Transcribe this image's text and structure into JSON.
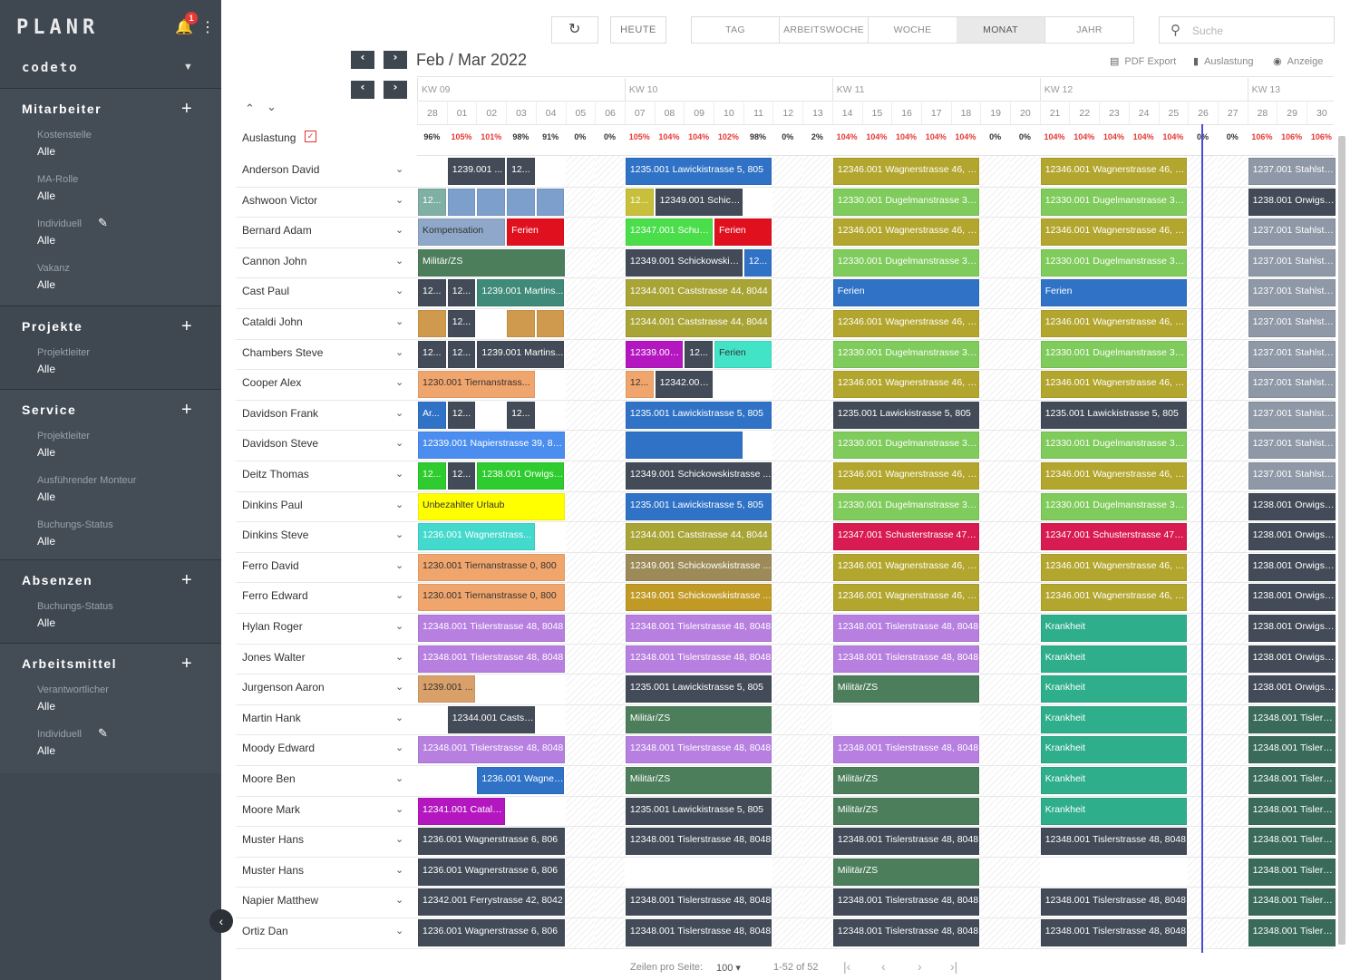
{
  "app": {
    "logo": "PLANR",
    "notifications": "1",
    "company": "codeto"
  },
  "sidebar": [
    {
      "title": "Mitarbeiter",
      "filters": [
        {
          "label": "Kostenstelle",
          "value": "Alle"
        },
        {
          "label": "MA-Rolle",
          "value": "Alle"
        },
        {
          "label": "Individuell",
          "value": "Alle",
          "editable": true
        },
        {
          "label": "Vakanz",
          "value": "Alle"
        }
      ]
    },
    {
      "title": "Projekte",
      "filters": [
        {
          "label": "Projektleiter",
          "value": "Alle"
        }
      ]
    },
    {
      "title": "Service",
      "filters": [
        {
          "label": "Projektleiter",
          "value": "Alle"
        },
        {
          "label": "Ausführender Monteur",
          "value": "Alle"
        },
        {
          "label": "Buchungs-Status",
          "value": "Alle"
        }
      ]
    },
    {
      "title": "Absenzen",
      "filters": [
        {
          "label": "Buchungs-Status",
          "value": "Alle"
        }
      ]
    },
    {
      "title": "Arbeitsmittel",
      "filters": [
        {
          "label": "Verantwortlicher",
          "value": "Alle"
        },
        {
          "label": "Individuell",
          "value": "Alle",
          "editable": true
        }
      ]
    }
  ],
  "toolbar": {
    "today": "HEUTE",
    "views": [
      "TAG",
      "ARBEITSWOCHE",
      "WOCHE",
      "MONAT",
      "JAHR"
    ],
    "active_view": "MONAT",
    "search_placeholder": "Suche",
    "period": "Feb / Mar 2022",
    "pdf": "PDF Export",
    "util": "Auslastung",
    "view": "Anzeige"
  },
  "weeks": [
    "KW 09",
    "KW 10",
    "KW 11",
    "KW 12",
    "KW 13"
  ],
  "days": [
    "28",
    "01",
    "02",
    "03",
    "04",
    "05",
    "06",
    "07",
    "08",
    "09",
    "10",
    "11",
    "12",
    "13",
    "14",
    "15",
    "16",
    "17",
    "18",
    "19",
    "20",
    "21",
    "22",
    "23",
    "24",
    "25",
    "26",
    "27",
    "28",
    "29",
    "30"
  ],
  "utilization_label": "Auslastung",
  "utilization": [
    "96%",
    "105%",
    "101%",
    "98%",
    "91%",
    "0%",
    "0%",
    "105%",
    "104%",
    "104%",
    "102%",
    "98%",
    "0%",
    "2%",
    "104%",
    "104%",
    "104%",
    "104%",
    "104%",
    "0%",
    "0%",
    "104%",
    "104%",
    "104%",
    "104%",
    "104%",
    "0%",
    "0%",
    "106%",
    "106%",
    "106%"
  ],
  "employees": [
    {
      "name": "Anderson David",
      "bars": [
        [
          1,
          3,
          "1239.001 ...",
          "#424b57"
        ],
        [
          3,
          4,
          "12...",
          "#424b57"
        ],
        [
          7,
          12,
          "1235.001 Lawickistrasse 5, 805",
          "#2f72c6"
        ],
        [
          14,
          19,
          "12346.001 Wagnerstrasse 46, 8...",
          "#b3a62e"
        ],
        [
          21,
          26,
          "12346.001 Wagnerstrasse 46, 8...",
          "#b3a62e"
        ],
        [
          28,
          31,
          "1237.001 Stahlstr...",
          "#8e98a6"
        ]
      ]
    },
    {
      "name": "Ashwoon Victor",
      "bars": [
        [
          0,
          1,
          "12...",
          "#7fb0a3"
        ],
        [
          1,
          2,
          "",
          "#7d9fcc"
        ],
        [
          2,
          3,
          "",
          "#7d9fcc"
        ],
        [
          3,
          4,
          "",
          "#7d9fcc"
        ],
        [
          4,
          5,
          "",
          "#7d9fcc"
        ],
        [
          7,
          8,
          "12...",
          "#c8c03a"
        ],
        [
          8,
          11,
          "12349.001 Schick...",
          "#424b57"
        ],
        [
          14,
          19,
          "12330.001 Dugelmanstrasse 30....",
          "#7fcb5b"
        ],
        [
          21,
          26,
          "12330.001 Dugelmanstrasse 30....",
          "#7fcb5b"
        ],
        [
          28,
          31,
          "1238.001 Orwigst...",
          "#424b57"
        ]
      ]
    },
    {
      "name": "Bernard Adam",
      "bars": [
        [
          0,
          3,
          "Kompensation",
          "#8fa8c9",
          "dark"
        ],
        [
          3,
          5,
          "Ferien",
          "#e0101f"
        ],
        [
          7,
          10,
          "12347.001 Schust...",
          "#4ade4a"
        ],
        [
          10,
          12,
          "Ferien",
          "#e0101f"
        ],
        [
          14,
          19,
          "12346.001 Wagnerstrasse 46, 8...",
          "#b3a62e"
        ],
        [
          21,
          26,
          "12346.001 Wagnerstrasse 46, 8...",
          "#b3a62e"
        ],
        [
          28,
          31,
          "1237.001 Stahlstr...",
          "#8e98a6"
        ]
      ]
    },
    {
      "name": "Cannon John",
      "bars": [
        [
          0,
          5,
          "Militär/ZS",
          "#4d7e5c"
        ],
        [
          7,
          11,
          "12349.001 Schickowskis...",
          "#424b57"
        ],
        [
          11,
          12,
          "12...",
          "#2f72c6"
        ],
        [
          14,
          19,
          "12330.001 Dugelmanstrasse 30....",
          "#7fcb5b"
        ],
        [
          21,
          26,
          "12330.001 Dugelmanstrasse 30....",
          "#7fcb5b"
        ],
        [
          28,
          31,
          "1237.001 Stahlstr...",
          "#8e98a6"
        ]
      ]
    },
    {
      "name": "Cast Paul",
      "bars": [
        [
          0,
          1,
          "12...",
          "#424b57"
        ],
        [
          1,
          2,
          "12...",
          "#424b57"
        ],
        [
          2,
          5,
          "1239.001 Martins...",
          "#3f8a78"
        ],
        [
          7,
          12,
          "12344.001 Caststrasse 44, 8044",
          "#a9a436"
        ],
        [
          14,
          19,
          "Ferien",
          "#2f72c6"
        ],
        [
          21,
          26,
          "Ferien",
          "#2f72c6"
        ],
        [
          28,
          31,
          "1237.001 Stahlstr...",
          "#8e98a6"
        ]
      ]
    },
    {
      "name": "Cataldi John",
      "bars": [
        [
          0,
          1,
          "",
          "#cf9a4e"
        ],
        [
          1,
          2,
          "12...",
          "#424b57"
        ],
        [
          3,
          4,
          "",
          "#cf9a4e"
        ],
        [
          4,
          5,
          "",
          "#cf9a4e"
        ],
        [
          7,
          12,
          "12344.001 Caststrasse 44, 8044",
          "#a9a436"
        ],
        [
          14,
          19,
          "12346.001 Wagnerstrasse 46, 8...",
          "#b3a62e"
        ],
        [
          21,
          26,
          "12346.001 Wagnerstrasse 46, 8...",
          "#b3a62e"
        ],
        [
          28,
          31,
          "1237.001 Stahlstr...",
          "#8e98a6"
        ]
      ]
    },
    {
      "name": "Chambers Steve",
      "bars": [
        [
          0,
          1,
          "12...",
          "#424b57"
        ],
        [
          1,
          2,
          "12...",
          "#424b57"
        ],
        [
          2,
          5,
          "1239.001 Martins...",
          "#424b57"
        ],
        [
          7,
          9,
          "12339.001 ...",
          "#b417c0"
        ],
        [
          9,
          10,
          "12...",
          "#424b57"
        ],
        [
          10,
          12,
          "Ferien",
          "#43e3c7",
          "dark"
        ],
        [
          14,
          19,
          "12330.001 Dugelmanstrasse 30....",
          "#7fcb5b"
        ],
        [
          21,
          26,
          "12330.001 Dugelmanstrasse 30....",
          "#7fcb5b"
        ],
        [
          28,
          31,
          "1237.001 Stahlstr...",
          "#8e98a6"
        ]
      ]
    },
    {
      "name": "Cooper Alex",
      "bars": [
        [
          0,
          4,
          "1230.001 Tiernanstrass...",
          "#f0a56c",
          "dark"
        ],
        [
          7,
          8,
          "12...",
          "#f0a56c",
          "dark"
        ],
        [
          8,
          10,
          "12342.001...",
          "#424b57"
        ],
        [
          14,
          19,
          "12346.001 Wagnerstrasse 46, 8...",
          "#b3a62e"
        ],
        [
          21,
          26,
          "12346.001 Wagnerstrasse 46, 8...",
          "#b3a62e"
        ],
        [
          28,
          31,
          "1237.001 Stahlstr...",
          "#8e98a6"
        ]
      ]
    },
    {
      "name": "Davidson Frank",
      "bars": [
        [
          0,
          1,
          "Ar...",
          "#2f72c6"
        ],
        [
          1,
          2,
          "12...",
          "#424b57"
        ],
        [
          3,
          4,
          "12...",
          "#424b57"
        ],
        [
          7,
          12,
          "1235.001 Lawickistrasse 5, 805",
          "#2f72c6"
        ],
        [
          14,
          19,
          "1235.001 Lawickistrasse 5, 805",
          "#424b57"
        ],
        [
          21,
          26,
          "1235.001 Lawickistrasse 5, 805",
          "#424b57"
        ],
        [
          28,
          31,
          "1237.001 Stahlstr...",
          "#8e98a6"
        ]
      ]
    },
    {
      "name": "Davidson Steve",
      "bars": [
        [
          0,
          5,
          "12339.001 Napierstrasse 39, 80...",
          "#4b8ef0"
        ],
        [
          7,
          11,
          "",
          "#2f72c6"
        ],
        [
          14,
          19,
          "12330.001 Dugelmanstrasse 30....",
          "#7fcb5b"
        ],
        [
          21,
          26,
          "12330.001 Dugelmanstrasse 30....",
          "#7fcb5b"
        ],
        [
          28,
          31,
          "1237.001 Stahlstr...",
          "#8e98a6"
        ]
      ]
    },
    {
      "name": "Deitz Thomas",
      "bars": [
        [
          0,
          1,
          "12...",
          "#2ecc2e"
        ],
        [
          1,
          2,
          "12...",
          "#424b57"
        ],
        [
          2,
          5,
          "1238.001 Orwigst...",
          "#2ecc2e"
        ],
        [
          7,
          12,
          "12349.001 Schickowskistrasse ...",
          "#424b57"
        ],
        [
          14,
          19,
          "12346.001 Wagnerstrasse 46, 8...",
          "#b3a62e"
        ],
        [
          21,
          26,
          "12346.001 Wagnerstrasse 46, 8...",
          "#b3a62e"
        ],
        [
          28,
          31,
          "1237.001 Stahlstr...",
          "#8e98a6"
        ]
      ]
    },
    {
      "name": "Dinkins Paul",
      "bars": [
        [
          0,
          5,
          "Unbezahlter Urlaub",
          "#ffff00",
          "dark"
        ],
        [
          7,
          12,
          "1235.001 Lawickistrasse 5, 805",
          "#2f72c6"
        ],
        [
          14,
          19,
          "12330.001 Dugelmanstrasse 30....",
          "#7fcb5b"
        ],
        [
          21,
          26,
          "12330.001 Dugelmanstrasse 30....",
          "#7fcb5b"
        ],
        [
          28,
          31,
          "1238.001 Orwigst...",
          "#424b57"
        ]
      ]
    },
    {
      "name": "Dinkins Steve",
      "bars": [
        [
          0,
          4,
          "1236.001 Wagnerstrass...",
          "#43d9cc"
        ],
        [
          7,
          12,
          "12344.001 Caststrasse 44, 8044",
          "#a9a436"
        ],
        [
          14,
          19,
          "12347.001 Schusterstrasse 47, 8...",
          "#d81b50"
        ],
        [
          21,
          26,
          "12347.001 Schusterstrasse 47, 8...",
          "#d81b50"
        ],
        [
          28,
          31,
          "1238.001 Orwigst...",
          "#424b57"
        ]
      ]
    },
    {
      "name": "Ferro David",
      "bars": [
        [
          0,
          5,
          "1230.001 Tiernanstrasse 0, 800",
          "#f0a56c",
          "dark"
        ],
        [
          7,
          12,
          "12349.001 Schickowskistrasse ...",
          "#9c8a58"
        ],
        [
          14,
          19,
          "12346.001 Wagnerstrasse 46, 8...",
          "#b3a62e"
        ],
        [
          21,
          26,
          "12346.001 Wagnerstrasse 46, 8...",
          "#b3a62e"
        ],
        [
          28,
          31,
          "1238.001 Orwigst...",
          "#424b57"
        ]
      ]
    },
    {
      "name": "Ferro Edward",
      "bars": [
        [
          0,
          5,
          "1230.001 Tiernanstrasse 0, 800",
          "#f0a56c",
          "dark"
        ],
        [
          7,
          12,
          "12349.001 Schickowskistrasse ...",
          "#c19a25"
        ],
        [
          14,
          19,
          "12346.001 Wagnerstrasse 46, 8...",
          "#b3a62e"
        ],
        [
          21,
          26,
          "12346.001 Wagnerstrasse 46, 8...",
          "#b3a62e"
        ],
        [
          28,
          31,
          "1238.001 Orwigst...",
          "#424b57"
        ]
      ]
    },
    {
      "name": "Hylan Roger",
      "bars": [
        [
          0,
          5,
          "12348.001 Tislerstrasse 48, 8048",
          "#b77fe0"
        ],
        [
          7,
          12,
          "12348.001 Tislerstrasse 48, 8048",
          "#b77fe0"
        ],
        [
          14,
          19,
          "12348.001 Tislerstrasse 48, 8048",
          "#b77fe0"
        ],
        [
          21,
          26,
          "Krankheit",
          "#2fae8c"
        ],
        [
          28,
          31,
          "1238.001 Orwigst...",
          "#424b57"
        ]
      ]
    },
    {
      "name": "Jones Walter",
      "bars": [
        [
          0,
          5,
          "12348.001 Tislerstrasse 48, 8048",
          "#b77fe0"
        ],
        [
          7,
          12,
          "12348.001 Tislerstrasse 48, 8048",
          "#b77fe0"
        ],
        [
          14,
          19,
          "12348.001 Tislerstrasse 48, 8048",
          "#b77fe0"
        ],
        [
          21,
          26,
          "Krankheit",
          "#2fae8c"
        ],
        [
          28,
          31,
          "1238.001 Orwigst...",
          "#424b57"
        ]
      ]
    },
    {
      "name": "Jurgenson Aaron",
      "bars": [
        [
          0,
          2,
          "1239.001 ...",
          "#d9a06a",
          "dark"
        ],
        [
          7,
          12,
          "1235.001 Lawickistrasse 5, 805",
          "#424b57"
        ],
        [
          14,
          19,
          "Militär/ZS",
          "#4d7e5c"
        ],
        [
          21,
          26,
          "Krankheit",
          "#2fae8c"
        ],
        [
          28,
          31,
          "1238.001 Orwigst...",
          "#424b57"
        ]
      ]
    },
    {
      "name": "Martin Hank",
      "bars": [
        [
          1,
          4,
          "12344.001 Castst...",
          "#424b57"
        ],
        [
          7,
          12,
          "Militär/ZS",
          "#4d7e5c"
        ],
        [
          21,
          26,
          "Krankheit",
          "#2fae8c"
        ],
        [
          28,
          31,
          "12348.001 Tislers...",
          "#3a6b5a"
        ]
      ]
    },
    {
      "name": "Moody Edward",
      "bars": [
        [
          0,
          5,
          "12348.001 Tislerstrasse 48, 8048",
          "#b77fe0"
        ],
        [
          7,
          12,
          "12348.001 Tislerstrasse 48, 8048",
          "#b77fe0"
        ],
        [
          14,
          19,
          "12348.001 Tislerstrasse 48, 8048",
          "#b77fe0"
        ],
        [
          21,
          26,
          "Krankheit",
          "#2fae8c"
        ],
        [
          28,
          31,
          "12348.001 Tislers...",
          "#3a6b5a"
        ]
      ]
    },
    {
      "name": "Moore Ben",
      "bars": [
        [
          2,
          5,
          "1236.001 Wagner...",
          "#2f72c6"
        ],
        [
          7,
          12,
          "Militär/ZS",
          "#4d7e5c"
        ],
        [
          14,
          19,
          "Militär/ZS",
          "#4d7e5c"
        ],
        [
          21,
          26,
          "Krankheit",
          "#2fae8c"
        ],
        [
          28,
          31,
          "12348.001 Tislers...",
          "#3a6b5a"
        ]
      ]
    },
    {
      "name": "Moore Mark",
      "bars": [
        [
          0,
          3,
          "12341.001 Cataldi...",
          "#b417c0"
        ],
        [
          7,
          12,
          "1235.001 Lawickistrasse 5, 805",
          "#424b57"
        ],
        [
          14,
          19,
          "Militär/ZS",
          "#4d7e5c"
        ],
        [
          21,
          26,
          "Krankheit",
          "#2fae8c"
        ],
        [
          28,
          31,
          "12348.001 Tislers...",
          "#3a6b5a"
        ]
      ]
    },
    {
      "name": "Muster Hans",
      "bars": [
        [
          0,
          5,
          "1236.001 Wagnerstrasse 6, 806",
          "#424b57"
        ],
        [
          7,
          12,
          "12348.001 Tislerstrasse 48, 8048",
          "#424b57"
        ],
        [
          14,
          19,
          "12348.001 Tislerstrasse 48, 8048",
          "#424b57"
        ],
        [
          21,
          26,
          "12348.001 Tislerstrasse 48, 8048",
          "#424b57"
        ],
        [
          28,
          31,
          "12348.001 Tislers...",
          "#3a6b5a"
        ]
      ]
    },
    {
      "name": "Muster Hans",
      "bars": [
        [
          0,
          5,
          "1236.001 Wagnerstrasse 6, 806",
          "#424b57"
        ],
        [
          14,
          19,
          "Militär/ZS",
          "#4d7e5c"
        ],
        [
          28,
          31,
          "12348.001 Tislers...",
          "#3a6b5a"
        ]
      ]
    },
    {
      "name": "Napier Matthew",
      "bars": [
        [
          0,
          5,
          "12342.001 Ferrystrasse 42, 8042",
          "#424b57"
        ],
        [
          7,
          12,
          "12348.001 Tislerstrasse 48, 8048",
          "#424b57"
        ],
        [
          14,
          19,
          "12348.001 Tislerstrasse 48, 8048",
          "#424b57"
        ],
        [
          21,
          26,
          "12348.001 Tislerstrasse 48, 8048",
          "#424b57"
        ],
        [
          28,
          31,
          "12348.001 Tislers...",
          "#3a6b5a"
        ]
      ]
    },
    {
      "name": "Ortiz Dan",
      "bars": [
        [
          0,
          5,
          "1236.001 Wagnerstrasse 6, 806",
          "#424b57"
        ],
        [
          7,
          12,
          "12348.001 Tislerstrasse 48, 8048",
          "#424b57"
        ],
        [
          14,
          19,
          "12348.001 Tislerstrasse 48, 8048",
          "#424b57"
        ],
        [
          21,
          26,
          "12348.001 Tislerstrasse 48, 8048",
          "#424b57"
        ],
        [
          28,
          31,
          "12348.001 Tislers...",
          "#3a6b5a"
        ]
      ]
    }
  ],
  "pagination": {
    "rows_label": "Zeilen pro Seite:",
    "rows_value": "100",
    "range": "1-52 of 52"
  }
}
